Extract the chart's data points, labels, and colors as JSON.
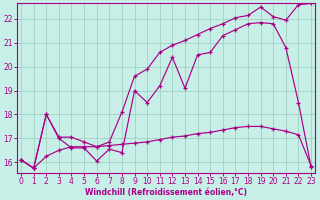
{
  "bg_color": "#c8eee8",
  "line_color": "#aa0088",
  "grid_color": "#99ccbb",
  "xlabel": "Windchill (Refroidissement éolien,°C)",
  "xticks": [
    0,
    1,
    2,
    3,
    4,
    5,
    6,
    7,
    8,
    9,
    10,
    11,
    12,
    13,
    14,
    15,
    16,
    17,
    18,
    19,
    20,
    21,
    22,
    23
  ],
  "yticks": [
    16,
    17,
    18,
    19,
    20,
    21,
    22
  ],
  "xlim": [
    -0.3,
    23.3
  ],
  "ylim": [
    15.55,
    22.65
  ],
  "line1_x": [
    0,
    1,
    2,
    3,
    4,
    5,
    6,
    7,
    8,
    9,
    10,
    11,
    12,
    13,
    14,
    15,
    16,
    17,
    18,
    19,
    20,
    21,
    22,
    23
  ],
  "line1_y": [
    16.1,
    15.75,
    18.0,
    17.0,
    16.6,
    16.6,
    16.05,
    16.55,
    16.4,
    19.0,
    18.5,
    19.2,
    20.4,
    19.1,
    20.5,
    20.6,
    21.3,
    21.55,
    21.8,
    21.85,
    21.8,
    20.8,
    18.5,
    15.8
  ],
  "line2_x": [
    0,
    1,
    2,
    3,
    4,
    5,
    6,
    7,
    8,
    9,
    10,
    11,
    12,
    13,
    14,
    15,
    16,
    17,
    18,
    19,
    20,
    21,
    22,
    23
  ],
  "line2_y": [
    16.1,
    15.75,
    18.0,
    17.05,
    17.05,
    16.85,
    16.65,
    16.85,
    18.1,
    19.6,
    19.9,
    20.6,
    20.9,
    21.1,
    21.35,
    21.6,
    21.8,
    22.05,
    22.15,
    22.5,
    22.1,
    21.95,
    22.6,
    22.65
  ],
  "line3_x": [
    0,
    1,
    2,
    3,
    4,
    5,
    6,
    7,
    8,
    9,
    10,
    11,
    12,
    13,
    14,
    15,
    16,
    17,
    18,
    19,
    20,
    21,
    22,
    23
  ],
  "line3_y": [
    16.1,
    15.75,
    16.25,
    16.5,
    16.65,
    16.65,
    16.65,
    16.7,
    16.75,
    16.8,
    16.85,
    16.95,
    17.05,
    17.1,
    17.2,
    17.25,
    17.35,
    17.45,
    17.5,
    17.5,
    17.4,
    17.3,
    17.15,
    15.85
  ]
}
